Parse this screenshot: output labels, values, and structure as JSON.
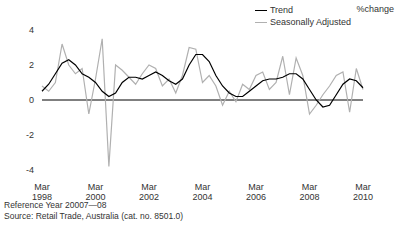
{
  "chart_data": {
    "type": "line",
    "y_label": "%change",
    "notes": [
      "Reference Year 20007—08",
      "Source: Retail Trade, Australia (cat. no. 8501.0)"
    ],
    "categories": [
      "Mar 1998",
      null,
      null,
      null,
      null,
      null,
      null,
      null,
      "Mar 2000",
      null,
      null,
      null,
      null,
      null,
      null,
      null,
      "Mar 2002",
      null,
      null,
      null,
      null,
      null,
      null,
      null,
      "Mar 2004",
      null,
      null,
      null,
      null,
      null,
      null,
      null,
      "Mar 2006",
      null,
      null,
      null,
      null,
      null,
      null,
      null,
      "Mar 2008",
      null,
      null,
      null,
      null,
      null,
      null,
      null,
      "Mar 2010"
    ],
    "series": [
      {
        "name": "Trend",
        "color": "#000000",
        "values": [
          0.5,
          0.9,
          1.5,
          2.1,
          2.3,
          2.0,
          1.5,
          1.3,
          1.0,
          0.5,
          0.2,
          0.4,
          1.0,
          1.3,
          1.3,
          1.2,
          1.4,
          1.6,
          1.4,
          1.1,
          0.9,
          1.2,
          2.0,
          2.6,
          2.6,
          2.2,
          1.4,
          0.8,
          0.4,
          0.2,
          0.2,
          0.5,
          0.8,
          1.1,
          1.2,
          1.2,
          1.3,
          1.5,
          1.5,
          1.2,
          0.6,
          0.0,
          -0.4,
          -0.3,
          0.3,
          0.9,
          1.2,
          1.1,
          0.7
        ]
      },
      {
        "name": "Seasonally Adjusted",
        "color": "#b0b0b0",
        "values": [
          0.8,
          0.5,
          1.0,
          3.2,
          2.0,
          1.5,
          1.8,
          -0.8,
          1.2,
          3.5,
          -3.8,
          2.0,
          1.7,
          1.3,
          0.9,
          1.5,
          2.0,
          1.8,
          0.8,
          1.2,
          0.4,
          1.4,
          3.0,
          2.9,
          1.0,
          1.4,
          0.8,
          -0.3,
          0.5,
          -0.1,
          0.9,
          0.6,
          1.4,
          1.6,
          0.6,
          1.0,
          2.5,
          0.3,
          2.4,
          1.4,
          -0.8,
          -0.3,
          0.3,
          0.8,
          1.4,
          1.6,
          -0.7,
          1.8,
          0.6
        ]
      }
    ],
    "ylim": [
      -4,
      4
    ],
    "yticks": [
      -4,
      -2,
      0,
      2,
      4
    ],
    "legend": "upper right"
  }
}
